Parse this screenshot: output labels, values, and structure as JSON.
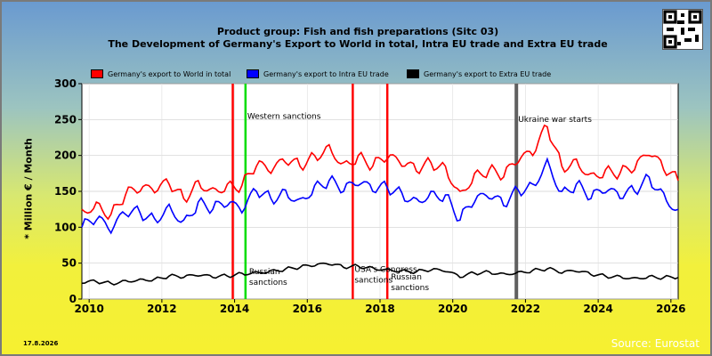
{
  "header": {
    "title": "Product group: Fish and fish preparations (Sitc 03)",
    "subtitle": "The Development of Germany's Export to World in total, Intra EU trade and Extra EU trade"
  },
  "footer": {
    "date": "17.8.2026",
    "source": "Source: Eurostat"
  },
  "colors": {
    "world": "#ff0000",
    "intra": "#0000ff",
    "extra": "#000000",
    "red_marker": "#ff0000",
    "green_marker": "#00dd00",
    "gray_marker": "#606060"
  },
  "icons": {
    "qr": "qr-code-icon"
  },
  "chart_data": {
    "type": "line",
    "ylabel": "* Million € / Month",
    "xlim": [
      2009.8,
      2026.2
    ],
    "ylim": [
      0,
      300
    ],
    "yticks": [
      0,
      50,
      100,
      150,
      200,
      250,
      300
    ],
    "xticks": [
      2010,
      2012,
      2014,
      2016,
      2018,
      2020,
      2022,
      2024,
      2026
    ],
    "grid": true,
    "legend_position": "top",
    "series": [
      {
        "name": "Germany's export to World in total",
        "color": "#ff0000",
        "x": [
          2009.8,
          2010.2,
          2010.6,
          2011.0,
          2011.4,
          2011.8,
          2012.2,
          2012.6,
          2013.0,
          2013.4,
          2013.8,
          2014.2,
          2014.6,
          2015.0,
          2015.4,
          2015.8,
          2016.2,
          2016.6,
          2017.0,
          2017.4,
          2017.8,
          2018.2,
          2018.6,
          2019.0,
          2019.4,
          2019.8,
          2020.2,
          2020.6,
          2021.0,
          2021.4,
          2021.8,
          2022.2,
          2022.6,
          2023.0,
          2023.4,
          2023.8,
          2024.2,
          2024.6,
          2025.0,
          2025.4,
          2025.8,
          2026.2
        ],
        "y": [
          125,
          135,
          118,
          145,
          150,
          148,
          160,
          140,
          165,
          155,
          160,
          158,
          185,
          175,
          190,
          185,
          200,
          215,
          190,
          200,
          185,
          195,
          185,
          178,
          190,
          185,
          150,
          175,
          180,
          170,
          190,
          200,
          240,
          185,
          195,
          175,
          180,
          175,
          180,
          200,
          180,
          165
        ]
      },
      {
        "name": "Germany's export to Intra EU trade",
        "color": "#0000ff",
        "x": [
          2009.8,
          2010.2,
          2010.6,
          2011.0,
          2011.4,
          2011.8,
          2012.2,
          2012.6,
          2013.0,
          2013.4,
          2013.8,
          2014.2,
          2014.6,
          2015.0,
          2015.4,
          2015.8,
          2016.2,
          2016.6,
          2017.0,
          2017.4,
          2017.8,
          2018.2,
          2018.6,
          2019.0,
          2019.4,
          2019.8,
          2020.2,
          2020.6,
          2021.0,
          2021.4,
          2021.8,
          2022.2,
          2022.6,
          2023.0,
          2023.4,
          2023.8,
          2024.2,
          2024.6,
          2025.0,
          2025.4,
          2025.8,
          2026.2
        ],
        "y": [
          100,
          110,
          92,
          118,
          120,
          112,
          132,
          110,
          135,
          125,
          130,
          120,
          150,
          140,
          152,
          140,
          158,
          165,
          150,
          158,
          150,
          155,
          148,
          140,
          150,
          145,
          110,
          135,
          140,
          130,
          152,
          160,
          195,
          150,
          160,
          140,
          148,
          140,
          150,
          170,
          148,
          125
        ]
      },
      {
        "name": "Germany's export to Extra EU trade",
        "color": "#000000",
        "x": [
          2009.8,
          2010.2,
          2010.6,
          2011.0,
          2011.4,
          2011.8,
          2012.2,
          2012.6,
          2013.0,
          2013.4,
          2013.8,
          2014.2,
          2014.6,
          2015.0,
          2015.4,
          2015.8,
          2016.2,
          2016.6,
          2017.0,
          2017.4,
          2017.8,
          2018.2,
          2018.6,
          2019.0,
          2019.4,
          2019.8,
          2020.2,
          2020.6,
          2021.0,
          2021.4,
          2021.8,
          2022.2,
          2022.6,
          2023.0,
          2023.4,
          2023.8,
          2024.2,
          2024.6,
          2025.0,
          2025.4,
          2025.8,
          2026.2
        ],
        "y": [
          22,
          24,
          22,
          26,
          28,
          28,
          32,
          30,
          32,
          30,
          32,
          36,
          38,
          40,
          42,
          44,
          46,
          48,
          44,
          46,
          44,
          42,
          40,
          38,
          40,
          38,
          30,
          36,
          38,
          36,
          38,
          40,
          42,
          36,
          38,
          34,
          32,
          32,
          30,
          32,
          30,
          30
        ]
      }
    ],
    "vertical_markers": [
      {
        "x": 2013.95,
        "color": "red",
        "label": ""
      },
      {
        "x": 2014.3,
        "color": "green",
        "label": "Western sanctions"
      },
      {
        "x": 2017.25,
        "color": "red",
        "label": "USA's Congress sanctions"
      },
      {
        "x": 2018.2,
        "color": "red",
        "label": ""
      },
      {
        "x": 2021.75,
        "color": "gray",
        "label": "Ukraine war starts"
      }
    ],
    "annotations": [
      {
        "text": "Russian sanctions",
        "x": 2014.4,
        "y": 35
      },
      {
        "text": "Russian sanctions",
        "x": 2018.3,
        "y": 27
      }
    ]
  }
}
